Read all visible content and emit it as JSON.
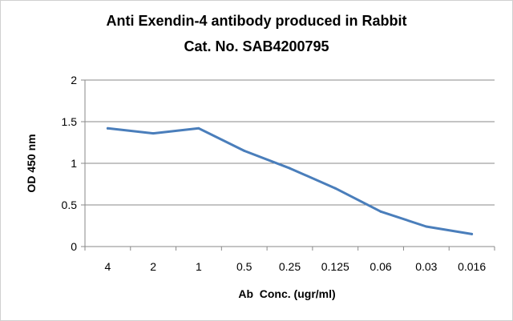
{
  "chart_data": {
    "type": "line",
    "title": "Anti Exendin-4 antibody produced in Rabbit",
    "subtitle": "Cat. No. SAB4200795",
    "xlabel": "Ab  Conc. (ugr/ml)",
    "ylabel": "OD 450 nm",
    "categories": [
      "4",
      "2",
      "1",
      "0.5",
      "0.25",
      "0.125",
      "0.06",
      "0.03",
      "0.016"
    ],
    "series": [
      {
        "values": [
          1.42,
          1.36,
          1.42,
          1.15,
          0.94,
          0.7,
          0.42,
          0.24,
          0.15
        ]
      }
    ],
    "ylim": [
      0,
      2
    ],
    "yticks": [
      "0",
      "0.5",
      "1",
      "1.5",
      "2"
    ],
    "grid": true,
    "legend": "none",
    "colors": {
      "line": "#4a7ebb",
      "grid": "#8a8a8a",
      "axis": "#8a8a8a",
      "text": "#000000"
    }
  }
}
